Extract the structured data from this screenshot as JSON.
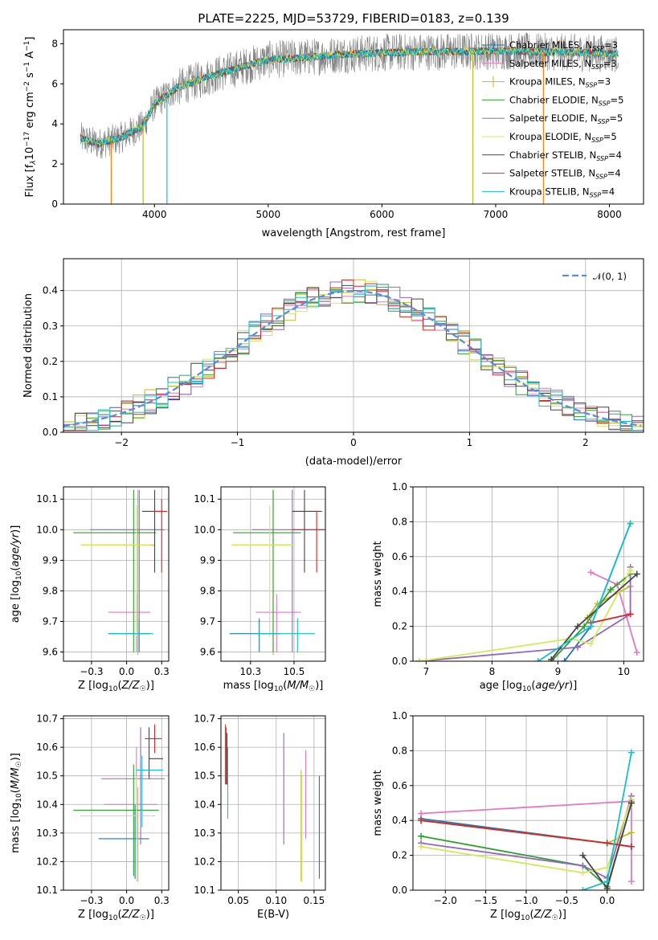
{
  "figure": {
    "title": "PLATE=2225, MJD=53729, FIBERID=0183, z=0.139",
    "series_names": [
      "Chabrier MILES, N_SSP=3",
      "Salpeter MILES, N_SSP=3",
      "Kroupa MILES, N_SSP=3",
      "Chabrier ELODIE, N_SSP=5",
      "Salpeter ELODIE, N_SSP=5",
      "Kroupa ELODIE, N_SSP=5",
      "Chabrier STELIB, N_SSP=4",
      "Salpeter STELIB, N_SSP=4",
      "Kroupa STELIB, N_SSP=4"
    ],
    "series_colors": [
      "#1f77b4",
      "#e377c2",
      "#bcbd22",
      "#2ca02c",
      "#9467bd",
      "#d6e85a",
      "#444444",
      "#d62728",
      "#17becf"
    ],
    "legend_labels": [
      {
        "pre": "Chabrier MILES, N",
        "sub": "SSP",
        "post": "=3"
      },
      {
        "pre": "Salpeter MILES, N",
        "sub": "SSP",
        "post": "=3"
      },
      {
        "pre": "Kroupa MILES, N",
        "sub": "SSP",
        "post": "=3"
      },
      {
        "pre": "Chabrier ELODIE, N",
        "sub": "SSP",
        "post": "=5"
      },
      {
        "pre": "Salpeter ELODIE, N",
        "sub": "SSP",
        "post": "=5"
      },
      {
        "pre": "Kroupa ELODIE, N",
        "sub": "SSP",
        "post": "=5"
      },
      {
        "pre": "Chabrier STELIB, N",
        "sub": "SSP",
        "post": "=4"
      },
      {
        "pre": "Salpeter STELIB, N",
        "sub": "SSP",
        "post": "=4"
      },
      {
        "pre": "Kroupa STELIB, N",
        "sub": "SSP",
        "post": "=4"
      }
    ]
  },
  "chart_data": [
    {
      "type": "line",
      "id": "spectrum",
      "xlabel": "wavelength [Angstrom, rest frame]",
      "ylabel_parts": [
        "Flux [f",
        "λ",
        "10",
        "−17",
        " erg cm",
        "−2",
        " s",
        "−1",
        " A",
        "−1",
        "]"
      ],
      "xlim": [
        3200,
        8300
      ],
      "ylim": [
        0,
        8.7
      ],
      "xticks": [
        4000,
        5000,
        6000,
        7000,
        8000
      ],
      "yticks": [
        0,
        2,
        4,
        6,
        8
      ],
      "data_x_range": [
        3350,
        8080
      ],
      "continuum": {
        "x": [
          3350,
          3500,
          3700,
          3900,
          4000,
          4200,
          4500,
          4800,
          5000,
          5300,
          5600,
          6000,
          6300,
          6600,
          7000,
          7400,
          7800,
          8080
        ],
        "y": [
          3.3,
          3.0,
          3.3,
          3.9,
          5.0,
          5.8,
          6.4,
          6.9,
          7.2,
          7.3,
          7.45,
          7.55,
          7.6,
          7.6,
          7.65,
          7.6,
          7.55,
          7.5
        ]
      },
      "drops": [
        {
          "x": 3620,
          "color": "#ff7f0e"
        },
        {
          "x": 3900,
          "color": "#bcbd22"
        },
        {
          "x": 4110,
          "color": "#17becf"
        },
        {
          "x": 6800,
          "color": "#bcbd22"
        },
        {
          "x": 7420,
          "color": "#ff7f0e"
        }
      ],
      "grid": false,
      "legend": "upper right"
    },
    {
      "type": "histogram",
      "id": "residuals",
      "xlabel": "(data-model)/error",
      "ylabel": "Normed distribution",
      "xlim": [
        -2.5,
        2.5
      ],
      "ylim": [
        0,
        0.49
      ],
      "xticks": [
        -2,
        -1,
        0,
        1,
        2
      ],
      "yticks": [
        0,
        0.1,
        0.2,
        0.3,
        0.4
      ],
      "bin_width": 0.1,
      "gaussian": {
        "mean": 0,
        "sigma": 1,
        "label": "𝒩(0, 1)",
        "color": "#5a8be0"
      },
      "grid": true,
      "legend": "upper right"
    },
    {
      "type": "errorbar",
      "id": "age-vs-Z",
      "xlabel": "Z [log10(Z/Z☉)]",
      "ylabel": "age [log10(age/yr)]",
      "xlim": [
        -0.45,
        0.3
      ],
      "ylim": [
        9.57,
        10.14
      ],
      "xticks": [
        -0.25,
        0.0,
        0.25
      ],
      "yticks": [
        9.6,
        9.7,
        9.8,
        9.9,
        10.0,
        10.1
      ],
      "points": [
        {
          "c": 0,
          "x": 0.09,
          "y": 9.66,
          "xe": [
            0.22,
            0.08
          ],
          "ye": [
            0.06,
            0.05
          ]
        },
        {
          "c": 1,
          "x": 0.07,
          "y": 9.73,
          "xe": [
            0.2,
            0.1
          ],
          "ye": [
            0.13,
            0.06
          ]
        },
        {
          "c": 2,
          "x": 0.08,
          "y": 9.95,
          "xe": [
            0.4,
            0.12
          ],
          "ye": [
            0.36,
            0.18
          ]
        },
        {
          "c": 3,
          "x": 0.05,
          "y": 9.99,
          "xe": [
            0.43,
            0.16
          ],
          "ye": [
            0.39,
            0.14
          ]
        },
        {
          "c": 4,
          "x": 0.09,
          "y": 10.0,
          "xe": [
            0.35,
            0.18
          ],
          "ye": [
            0.4,
            0.13
          ]
        },
        {
          "c": 5,
          "x": 0.07,
          "y": 9.95,
          "xe": [
            0.4,
            0.1
          ],
          "ye": [
            0.3,
            0.13
          ]
        },
        {
          "c": 6,
          "x": 0.2,
          "y": 10.06,
          "xe": [
            0.09,
            0.06
          ],
          "ye": [
            0.2,
            0.07
          ]
        },
        {
          "c": 7,
          "x": 0.25,
          "y": 10.06,
          "xe": [
            0.06,
            0.04
          ],
          "ye": [
            0.2,
            0.04
          ]
        },
        {
          "c": 8,
          "x": 0.09,
          "y": 9.66,
          "xe": [
            0.22,
            0.1
          ],
          "ye": [
            0.06,
            0.05
          ]
        }
      ],
      "grid": true
    },
    {
      "type": "errorbar",
      "id": "age-vs-mass",
      "xlabel": "mass [log10(M/M☉)]",
      "ylabel": "",
      "xlim": [
        10.08,
        10.68
      ],
      "ylim": [
        9.57,
        10.14
      ],
      "xticks": [
        10.25,
        10.5
      ],
      "yticks": [
        9.6,
        9.7,
        9.8,
        9.9,
        10.0,
        10.1
      ],
      "points": [
        {
          "c": 0,
          "x": 10.3,
          "y": 9.66,
          "xe": [
            0.17,
            0.12
          ],
          "ye": [
            0.06,
            0.05
          ]
        },
        {
          "c": 1,
          "x": 10.4,
          "y": 9.73,
          "xe": [
            0.12,
            0.14
          ],
          "ye": [
            0.13,
            0.06
          ]
        },
        {
          "c": 2,
          "x": 10.38,
          "y": 9.95,
          "xe": [
            0.23,
            0.1
          ],
          "ye": [
            0.36,
            0.18
          ]
        },
        {
          "c": 3,
          "x": 10.38,
          "y": 9.99,
          "xe": [
            0.23,
            0.16
          ],
          "ye": [
            0.39,
            0.14
          ]
        },
        {
          "c": 4,
          "x": 10.49,
          "y": 10.0,
          "xe": [
            0.23,
            0.18
          ],
          "ye": [
            0.4,
            0.13
          ]
        },
        {
          "c": 5,
          "x": 10.36,
          "y": 9.95,
          "xe": [
            0.22,
            0.14
          ],
          "ye": [
            0.3,
            0.13
          ]
        },
        {
          "c": 6,
          "x": 10.56,
          "y": 10.06,
          "xe": [
            0.07,
            0.1
          ],
          "ye": [
            0.2,
            0.07
          ]
        },
        {
          "c": 7,
          "x": 10.63,
          "y": 10.0,
          "xe": [
            0.14,
            0.08
          ],
          "ye": [
            0.14,
            0.06
          ]
        },
        {
          "c": 8,
          "x": 10.52,
          "y": 9.66,
          "xe": [
            0.25,
            0.1
          ],
          "ye": [
            0.06,
            0.05
          ]
        }
      ],
      "grid": true
    },
    {
      "type": "line",
      "id": "weight-vs-age",
      "xlabel": "age [log10(age/yr)]",
      "ylabel": "mass weight",
      "xlim": [
        6.8,
        10.3
      ],
      "ylim": [
        0,
        1.0
      ],
      "xticks": [
        7,
        8,
        9,
        10
      ],
      "yticks": [
        0.0,
        0.2,
        0.4,
        0.6,
        0.8,
        1.0
      ],
      "series": [
        {
          "c": 0,
          "x": [
            9.1,
            9.5,
            10.1
          ],
          "y": [
            0.0,
            0.2,
            0.79
          ]
        },
        {
          "c": 1,
          "x": [
            9.5,
            9.9,
            10.2
          ],
          "y": [
            0.51,
            0.44,
            0.05
          ]
        },
        {
          "c": 2,
          "x": [
            9.45,
            9.6,
            10.1
          ],
          "y": [
            0.25,
            0.33,
            0.43
          ]
        },
        {
          "c": 3,
          "x": [
            8.9,
            9.4,
            9.8,
            10.1
          ],
          "y": [
            0.0,
            0.2,
            0.41,
            0.5
          ]
        },
        {
          "c": 4,
          "x": [
            6.9,
            9.3,
            10.1,
            10.1
          ],
          "y": [
            0.0,
            0.08,
            0.27,
            0.54
          ]
        },
        {
          "c": 5,
          "x": [
            6.9,
            9.2,
            9.5,
            10.1
          ],
          "y": [
            0.0,
            0.13,
            0.1,
            0.52
          ]
        },
        {
          "c": 6,
          "x": [
            8.9,
            9.3,
            10.2
          ],
          "y": [
            0.01,
            0.2,
            0.5
          ]
        },
        {
          "c": 7,
          "x": [
            9.5,
            10.1
          ],
          "y": [
            0.22,
            0.27
          ]
        },
        {
          "c": 8,
          "x": [
            8.7,
            9.5,
            10.1
          ],
          "y": [
            0.0,
            0.2,
            0.79
          ]
        }
      ],
      "grid": true
    },
    {
      "type": "errorbar",
      "id": "mass-vs-Z",
      "xlabel": "Z [log10(Z/Z☉)]",
      "ylabel": "mass [log10(M/M☉)]",
      "xlim": [
        -0.45,
        0.3
      ],
      "ylim": [
        10.1,
        10.71
      ],
      "xticks": [
        -0.25,
        0.0,
        0.25
      ],
      "yticks": [
        10.1,
        10.2,
        10.3,
        10.4,
        10.5,
        10.6,
        10.7
      ],
      "points": [
        {
          "c": 0,
          "x": 0.06,
          "y": 10.28,
          "xe": [
            0.26,
            0.1
          ],
          "ye": [
            0.14,
            0.12
          ]
        },
        {
          "c": 1,
          "x": 0.07,
          "y": 10.4,
          "xe": [
            0.23,
            0.15
          ],
          "ye": [
            0.12,
            0.2
          ]
        },
        {
          "c": 2,
          "x": 0.08,
          "y": 10.36,
          "xe": [
            0.4,
            0.12
          ],
          "ye": [
            0.23,
            0.1
          ]
        },
        {
          "c": 3,
          "x": 0.05,
          "y": 10.38,
          "xe": [
            0.43,
            0.18
          ],
          "ye": [
            0.23,
            0.16
          ]
        },
        {
          "c": 4,
          "x": 0.1,
          "y": 10.49,
          "xe": [
            0.28,
            0.17
          ],
          "ye": [
            0.23,
            0.18
          ]
        },
        {
          "c": 5,
          "x": 0.07,
          "y": 10.36,
          "xe": [
            0.4,
            0.12
          ],
          "ye": [
            0.23,
            0.14
          ]
        },
        {
          "c": 6,
          "x": 0.16,
          "y": 10.56,
          "xe": [
            0.0,
            0.1
          ],
          "ye": [
            0.07,
            0.11
          ]
        },
        {
          "c": 7,
          "x": 0.2,
          "y": 10.63,
          "xe": [
            0.07,
            0.05
          ],
          "ye": [
            0.05,
            0.05
          ]
        },
        {
          "c": 8,
          "x": 0.11,
          "y": 10.52,
          "xe": [
            0.04,
            0.15
          ],
          "ye": [
            0.2,
            0.05
          ]
        }
      ],
      "grid": true
    },
    {
      "type": "errorbar",
      "id": "mass-vs-EBV",
      "xlabel": "E(B-V)",
      "ylabel": "",
      "xlim": [
        0.027,
        0.165
      ],
      "ylim": [
        10.1,
        10.71
      ],
      "xticks": [
        0.05,
        0.1,
        0.15
      ],
      "yticks": [
        10.1,
        10.2,
        10.3,
        10.4,
        10.5,
        10.6,
        10.7
      ],
      "points": [
        {
          "c": 0,
          "x": 0.157,
          "y": 10.28,
          "xe": [
            0,
            0
          ],
          "ye": [
            0.14,
            0.22
          ]
        },
        {
          "c": 1,
          "x": 0.139,
          "y": 10.4,
          "xe": [
            0,
            0
          ],
          "ye": [
            0.12,
            0.19
          ]
        },
        {
          "c": 2,
          "x": 0.133,
          "y": 10.36,
          "xe": [
            0,
            0
          ],
          "ye": [
            0.23,
            0.16
          ]
        },
        {
          "c": 3,
          "x": 0.034,
          "y": 10.6,
          "xe": [
            0,
            0
          ],
          "ye": [
            0.13,
            0.07
          ]
        },
        {
          "c": 4,
          "x": 0.11,
          "y": 10.49,
          "xe": [
            0,
            0
          ],
          "ye": [
            0.23,
            0.16
          ]
        },
        {
          "c": 5,
          "x": 0.134,
          "y": 10.36,
          "xe": [
            0,
            0
          ],
          "ye": [
            0.23,
            0.14
          ]
        },
        {
          "c": 6,
          "x": 0.035,
          "y": 10.6,
          "xe": [
            0,
            0
          ],
          "ye": [
            0.13,
            0.05
          ]
        },
        {
          "c": 7,
          "x": 0.033,
          "y": 10.58,
          "xe": [
            0,
            0
          ],
          "ye": [
            0.11,
            0.1
          ]
        },
        {
          "c": 8,
          "x": 0.036,
          "y": 10.42,
          "xe": [
            0,
            0
          ],
          "ye": [
            0.07,
            0.18
          ]
        }
      ],
      "grid": true
    },
    {
      "type": "line",
      "id": "weight-vs-Z",
      "xlabel": "Z [log10(Z/Z☉)]",
      "ylabel": "mass weight",
      "xlim": [
        -2.4,
        0.45
      ],
      "ylim": [
        0,
        1.0
      ],
      "xticks": [
        -2.0,
        -1.5,
        -1.0,
        -0.5,
        0.0
      ],
      "yticks": [
        0.0,
        0.2,
        0.4,
        0.6,
        0.8,
        1.0
      ],
      "series": [
        {
          "c": 0,
          "x": [
            -2.3,
            0.0,
            0.3
          ],
          "y": [
            0.41,
            0.27,
            0.25
          ]
        },
        {
          "c": 1,
          "x": [
            -2.3,
            0.3,
            0.3
          ],
          "y": [
            0.44,
            0.51,
            0.05
          ]
        },
        {
          "c": 2,
          "x": [
            -2.3,
            0.0,
            0.3
          ],
          "y": [
            0.4,
            0.27,
            0.33
          ]
        },
        {
          "c": 3,
          "x": [
            -2.3,
            -0.3,
            0.0,
            0.3
          ],
          "y": [
            0.31,
            0.14,
            0.02,
            0.5
          ]
        },
        {
          "c": 4,
          "x": [
            -2.3,
            -0.3,
            0.0,
            0.3
          ],
          "y": [
            0.27,
            0.14,
            0.07,
            0.54
          ]
        },
        {
          "c": 5,
          "x": [
            -2.3,
            -0.3,
            0.0,
            0.3
          ],
          "y": [
            0.25,
            0.1,
            0.13,
            0.52
          ]
        },
        {
          "c": 6,
          "x": [
            -0.3,
            0.0,
            0.3
          ],
          "y": [
            0.2,
            0.01,
            0.5
          ]
        },
        {
          "c": 7,
          "x": [
            -2.3,
            0.0,
            0.3
          ],
          "y": [
            0.4,
            0.27,
            0.25
          ]
        },
        {
          "c": 8,
          "x": [
            -0.3,
            0.0,
            0.3
          ],
          "y": [
            0.0,
            0.05,
            0.79
          ]
        }
      ],
      "grid": true
    }
  ]
}
